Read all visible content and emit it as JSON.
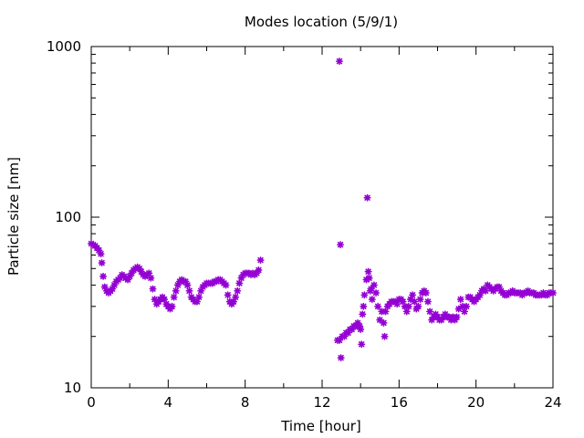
{
  "chart_data": {
    "type": "scatter",
    "title": "Modes location (5/9/1)",
    "xlabel": "Time [hour]",
    "ylabel": "Particle size [nm]",
    "xlim": [
      0,
      24
    ],
    "ylim": [
      10,
      1000
    ],
    "y_scale": "log",
    "grid": false,
    "x_ticks": [
      "0",
      "4",
      "8",
      "12",
      "16",
      "20",
      "24"
    ],
    "y_ticks": [
      "10",
      "100",
      "1000"
    ],
    "marker_color": "#9400d3",
    "series": [
      {
        "points": [
          [
            0.0,
            70
          ],
          [
            0.1,
            69
          ],
          [
            0.2,
            68
          ],
          [
            0.3,
            66
          ],
          [
            0.4,
            64
          ],
          [
            0.5,
            61
          ],
          [
            0.55,
            54
          ],
          [
            0.62,
            45
          ],
          [
            0.7,
            39
          ],
          [
            0.8,
            37
          ],
          [
            0.9,
            36
          ],
          [
            1.0,
            37
          ],
          [
            1.1,
            38
          ],
          [
            1.2,
            40
          ],
          [
            1.3,
            42
          ],
          [
            1.4,
            43
          ],
          [
            1.5,
            44
          ],
          [
            1.6,
            46
          ],
          [
            1.7,
            45
          ],
          [
            1.8,
            44
          ],
          [
            1.9,
            43
          ],
          [
            2.0,
            45
          ],
          [
            2.1,
            47
          ],
          [
            2.2,
            49
          ],
          [
            2.3,
            50
          ],
          [
            2.4,
            51
          ],
          [
            2.5,
            50
          ],
          [
            2.6,
            48
          ],
          [
            2.7,
            46
          ],
          [
            2.8,
            45
          ],
          [
            2.9,
            46
          ],
          [
            3.0,
            47
          ],
          [
            3.1,
            44
          ],
          [
            3.2,
            38
          ],
          [
            3.3,
            33
          ],
          [
            3.4,
            31
          ],
          [
            3.5,
            32
          ],
          [
            3.6,
            33
          ],
          [
            3.7,
            34
          ],
          [
            3.8,
            33
          ],
          [
            3.9,
            31
          ],
          [
            4.0,
            30
          ],
          [
            4.1,
            29
          ],
          [
            4.2,
            30
          ],
          [
            4.3,
            34
          ],
          [
            4.4,
            37
          ],
          [
            4.5,
            40
          ],
          [
            4.6,
            42
          ],
          [
            4.7,
            43
          ],
          [
            4.8,
            42
          ],
          [
            4.9,
            42
          ],
          [
            5.0,
            40
          ],
          [
            5.1,
            37
          ],
          [
            5.2,
            34
          ],
          [
            5.3,
            33
          ],
          [
            5.4,
            32
          ],
          [
            5.5,
            32
          ],
          [
            5.6,
            34
          ],
          [
            5.7,
            37
          ],
          [
            5.8,
            39
          ],
          [
            5.9,
            40
          ],
          [
            6.0,
            41
          ],
          [
            6.1,
            41
          ],
          [
            6.2,
            41
          ],
          [
            6.3,
            41
          ],
          [
            6.4,
            42
          ],
          [
            6.5,
            42
          ],
          [
            6.6,
            43
          ],
          [
            6.7,
            43
          ],
          [
            6.8,
            42
          ],
          [
            6.9,
            41
          ],
          [
            7.0,
            40
          ],
          [
            7.1,
            35
          ],
          [
            7.2,
            32
          ],
          [
            7.3,
            31
          ],
          [
            7.4,
            32
          ],
          [
            7.5,
            34
          ],
          [
            7.6,
            37
          ],
          [
            7.7,
            41
          ],
          [
            7.8,
            44
          ],
          [
            7.9,
            46
          ],
          [
            8.0,
            47
          ],
          [
            8.1,
            47
          ],
          [
            8.2,
            47
          ],
          [
            8.3,
            46
          ],
          [
            8.4,
            47
          ],
          [
            8.5,
            46
          ],
          [
            8.6,
            47
          ],
          [
            8.7,
            49
          ],
          [
            8.8,
            56
          ],
          [
            12.8,
            19
          ],
          [
            12.9,
            19
          ],
          [
            12.9,
            820
          ],
          [
            12.95,
            69
          ],
          [
            12.98,
            15
          ],
          [
            13.05,
            20
          ],
          [
            13.15,
            20
          ],
          [
            13.25,
            21
          ],
          [
            13.35,
            21
          ],
          [
            13.45,
            22
          ],
          [
            13.55,
            22
          ],
          [
            13.65,
            23
          ],
          [
            13.75,
            23
          ],
          [
            13.85,
            24
          ],
          [
            13.95,
            23
          ],
          [
            14.0,
            22
          ],
          [
            14.05,
            18
          ],
          [
            14.1,
            27
          ],
          [
            14.15,
            30
          ],
          [
            14.2,
            35
          ],
          [
            14.3,
            43
          ],
          [
            14.35,
            130
          ],
          [
            14.4,
            48
          ],
          [
            14.45,
            44
          ],
          [
            14.5,
            37
          ],
          [
            14.55,
            38
          ],
          [
            14.6,
            33
          ],
          [
            14.7,
            40
          ],
          [
            14.8,
            36
          ],
          [
            14.9,
            30
          ],
          [
            15.0,
            25
          ],
          [
            15.1,
            28
          ],
          [
            15.2,
            24
          ],
          [
            15.25,
            20
          ],
          [
            15.3,
            28
          ],
          [
            15.4,
            30
          ],
          [
            15.5,
            31
          ],
          [
            15.6,
            32
          ],
          [
            15.7,
            32
          ],
          [
            15.8,
            32
          ],
          [
            15.9,
            31
          ],
          [
            16.0,
            33
          ],
          [
            16.1,
            33
          ],
          [
            16.2,
            32
          ],
          [
            16.3,
            30
          ],
          [
            16.4,
            28
          ],
          [
            16.5,
            30
          ],
          [
            16.6,
            33
          ],
          [
            16.7,
            35
          ],
          [
            16.8,
            32
          ],
          [
            16.9,
            29
          ],
          [
            17.0,
            30
          ],
          [
            17.1,
            33
          ],
          [
            17.2,
            36
          ],
          [
            17.3,
            37
          ],
          [
            17.4,
            36
          ],
          [
            17.5,
            32
          ],
          [
            17.6,
            28
          ],
          [
            17.7,
            25
          ],
          [
            17.8,
            26
          ],
          [
            17.9,
            27
          ],
          [
            18.0,
            26
          ],
          [
            18.1,
            25
          ],
          [
            18.2,
            25
          ],
          [
            18.3,
            26
          ],
          [
            18.4,
            27
          ],
          [
            18.5,
            26
          ],
          [
            18.6,
            26
          ],
          [
            18.7,
            25
          ],
          [
            18.8,
            26
          ],
          [
            18.9,
            25
          ],
          [
            19.0,
            26
          ],
          [
            19.1,
            29
          ],
          [
            19.2,
            33
          ],
          [
            19.3,
            30
          ],
          [
            19.4,
            28
          ],
          [
            19.5,
            30
          ],
          [
            19.6,
            34
          ],
          [
            19.7,
            34
          ],
          [
            19.8,
            33
          ],
          [
            19.9,
            32
          ],
          [
            20.0,
            33
          ],
          [
            20.1,
            34
          ],
          [
            20.2,
            35
          ],
          [
            20.3,
            37
          ],
          [
            20.4,
            38
          ],
          [
            20.5,
            37
          ],
          [
            20.6,
            40
          ],
          [
            20.7,
            39
          ],
          [
            20.8,
            38
          ],
          [
            20.9,
            37
          ],
          [
            21.0,
            38
          ],
          [
            21.1,
            39
          ],
          [
            21.2,
            39
          ],
          [
            21.3,
            37
          ],
          [
            21.4,
            36
          ],
          [
            21.5,
            35
          ],
          [
            21.6,
            35
          ],
          [
            21.7,
            36
          ],
          [
            21.8,
            36
          ],
          [
            21.9,
            37
          ],
          [
            22.0,
            36
          ],
          [
            22.1,
            36
          ],
          [
            22.2,
            36
          ],
          [
            22.3,
            36
          ],
          [
            22.4,
            35
          ],
          [
            22.5,
            36
          ],
          [
            22.6,
            36
          ],
          [
            22.7,
            37
          ],
          [
            22.8,
            36
          ],
          [
            22.9,
            36
          ],
          [
            23.0,
            36
          ],
          [
            23.1,
            35
          ],
          [
            23.2,
            35
          ],
          [
            23.3,
            35
          ],
          [
            23.4,
            35
          ],
          [
            23.5,
            36
          ],
          [
            23.6,
            35
          ],
          [
            23.7,
            35
          ],
          [
            23.8,
            36
          ],
          [
            23.9,
            36
          ],
          [
            24.0,
            36
          ]
        ]
      }
    ]
  }
}
